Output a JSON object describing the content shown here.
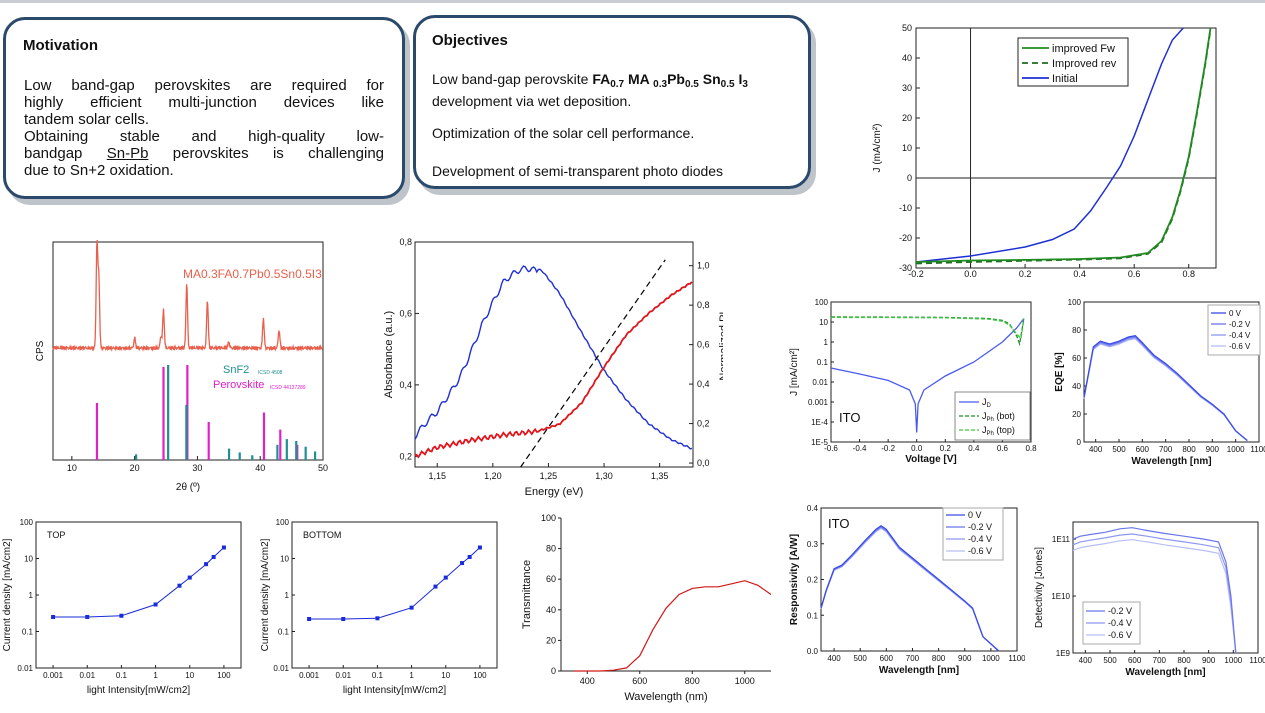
{
  "motivation": {
    "title": "Motivation",
    "line1": "Low band-gap perovskites are required for",
    "line2": "highly efficient multi-junction devices like",
    "line3": "tandem solar cells.",
    "line4": "Obtaining stable and high-quality low-",
    "line5a": "bandgap ",
    "line5b": "Sn-Pb",
    "line5c": " perovskites is challenging",
    "line6": "due to Sn+2 oxidation."
  },
  "objectives": {
    "title": "Objectives",
    "item1_pre": "Low band-gap perovskite ",
    "f_fa": "FA",
    "f_fa_sub": "0.7",
    "f_ma": " MA ",
    "f_ma_sub": "0.3",
    "f_pb": "Pb",
    "f_pb_sub": "0.5",
    "f_sn": " Sn",
    "f_sn_sub": "0.5",
    "f_i": " I",
    "f_i_sub": "3",
    "item1_post": "development via wet deposition.",
    "item2": "Optimization of the solar cell performance.",
    "item3": "Development of semi-transparent photo diodes"
  },
  "chart_data": [
    {
      "id": "jv",
      "type": "line",
      "ylabel": "J (mA/cm²)",
      "xlim": [
        -0.2,
        0.9
      ],
      "ylim": [
        -30,
        50
      ],
      "x_ticks": [
        "-0.2",
        "0.0",
        "0.2",
        "0.4",
        "0.6",
        "0.8"
      ],
      "y_ticks": [
        "-30",
        "-20",
        "-10",
        "0",
        "10",
        "20",
        "30",
        "40",
        "50"
      ],
      "legend": [
        "improved Fw",
        "Improved rev",
        "Initial"
      ],
      "colors": {
        "fw": "#1f8a1f",
        "rev": "#1f6b1f",
        "init": "#1f2fd6"
      },
      "series": [
        {
          "name": "improved Fw",
          "x": [
            -0.2,
            0.0,
            0.2,
            0.4,
            0.55,
            0.65,
            0.7,
            0.74,
            0.77,
            0.8,
            0.83,
            0.86,
            0.88
          ],
          "y": [
            -28,
            -27.5,
            -27.3,
            -27,
            -26.5,
            -25,
            -21,
            -13,
            -4,
            7,
            22,
            38,
            50
          ]
        },
        {
          "name": "Improved rev",
          "x": [
            -0.2,
            0.0,
            0.2,
            0.4,
            0.55,
            0.65,
            0.7,
            0.74,
            0.77,
            0.8,
            0.83,
            0.86,
            0.88
          ],
          "y": [
            -28.5,
            -28,
            -27.6,
            -27.2,
            -26.8,
            -25.3,
            -21.5,
            -13.5,
            -4.5,
            6.5,
            21.5,
            37.5,
            49.5
          ]
        },
        {
          "name": "Initial",
          "x": [
            -0.2,
            0.0,
            0.2,
            0.3,
            0.38,
            0.44,
            0.5,
            0.55,
            0.6,
            0.65,
            0.7,
            0.74,
            0.78
          ],
          "y": [
            -28,
            -26,
            -23,
            -20.5,
            -17,
            -11,
            -3,
            4,
            14,
            26,
            38,
            46,
            50
          ]
        }
      ]
    },
    {
      "id": "xrd",
      "type": "bar",
      "xlabel": "2θ (º)",
      "ylabel": "CPS",
      "xlim": [
        7,
        50
      ],
      "x_ticks": [
        "10",
        "20",
        "30",
        "40",
        "50"
      ],
      "label_main": "MA0.3FA0.7Pb0.5Sn0.5I3",
      "label_snf2": "SnF2",
      "label_snf2_ref": "ICSD 4508",
      "label_perov": "Perovskite",
      "label_perov_ref": "ICSD 44137289",
      "colors": {
        "xrd": "#e8604c",
        "snf2": "#1f8f8f",
        "perov": "#e020c8"
      },
      "peaks": [
        [
          14.0,
          105
        ],
        [
          14.3,
          70
        ],
        [
          20.0,
          10
        ],
        [
          24.6,
          38
        ],
        [
          28.3,
          65
        ],
        [
          31.6,
          48
        ],
        [
          40.5,
          30
        ],
        [
          43.0,
          18
        ],
        [
          24.2,
          12
        ],
        [
          35.0,
          6
        ]
      ],
      "snf2_lines": [
        [
          20.0,
          6
        ],
        [
          25.1,
          100
        ],
        [
          28.0,
          58
        ],
        [
          34.8,
          12
        ],
        [
          36.5,
          8
        ],
        [
          38.5,
          5
        ],
        [
          42.5,
          16
        ],
        [
          44.0,
          22
        ],
        [
          45.5,
          20
        ],
        [
          47.0,
          14
        ],
        [
          48.5,
          9
        ]
      ],
      "perov_lines": [
        [
          14.0,
          60
        ],
        [
          24.6,
          98
        ],
        [
          28.4,
          100
        ],
        [
          31.8,
          40
        ],
        [
          40.6,
          50
        ],
        [
          43.2,
          32
        ],
        [
          45.9,
          16
        ]
      ]
    },
    {
      "id": "absorb",
      "type": "line",
      "xlabel": "Energy (eV)",
      "ylabel": "Absorbance (a.u.)",
      "ylabel_right": "Normalized PL",
      "xlim": [
        1.13,
        1.38
      ],
      "ylim": [
        0.17,
        0.8
      ],
      "x_ticks": [
        "1,15",
        "1,20",
        "1,25",
        "1,30",
        "1,35"
      ],
      "y_ticks": [
        "0,2",
        "0,4",
        "0,6",
        "0,8"
      ],
      "y2_ticks": [
        "0,0",
        "0,2",
        "0,4",
        "0,6",
        "0,8",
        "1,0"
      ],
      "colors": {
        "pl": "#1f2fd6",
        "abs": "#e0141a",
        "fit": "#000000"
      },
      "pl": {
        "x": [
          1.13,
          1.15,
          1.17,
          1.19,
          1.21,
          1.225,
          1.235,
          1.245,
          1.26,
          1.28,
          1.3,
          1.32,
          1.34,
          1.36,
          1.38
        ],
        "y": [
          0.12,
          0.25,
          0.45,
          0.7,
          0.9,
          0.98,
          1.0,
          0.97,
          0.86,
          0.66,
          0.47,
          0.32,
          0.2,
          0.12,
          0.07
        ]
      },
      "abs": {
        "x": [
          1.13,
          1.15,
          1.18,
          1.21,
          1.24,
          1.26,
          1.28,
          1.3,
          1.32,
          1.34,
          1.36,
          1.38
        ],
        "y": [
          0.2,
          0.225,
          0.245,
          0.26,
          0.27,
          0.29,
          0.35,
          0.45,
          0.54,
          0.6,
          0.65,
          0.69
        ]
      },
      "fit": {
        "x": [
          1.225,
          1.355
        ],
        "y": [
          0.17,
          0.75
        ]
      }
    },
    {
      "id": "jv_log",
      "type": "line",
      "xlabel": "Voltage [V]",
      "ylabel": "J [mA/cm²]",
      "annotation": "ITO",
      "xlim": [
        -0.6,
        0.8
      ],
      "ylim_log": [
        -5,
        2
      ],
      "x_ticks": [
        "-0.6",
        "-0.4",
        "-0.2",
        "0.0",
        "0.2",
        "0.4",
        "0.6",
        "0.8"
      ],
      "y_ticks": [
        "1E-5",
        "1E-4",
        "0.001",
        "0.01",
        "0.1",
        "1",
        "10",
        "100"
      ],
      "legend": [
        "JD",
        "JPh (bot)",
        "JPh (top)"
      ],
      "legend_sub": [
        "D",
        "Ph",
        "Ph"
      ],
      "legend_main": [
        "J",
        "J",
        "J"
      ],
      "legend_suffix": [
        "",
        " (bot)",
        " (top)"
      ],
      "colors": {
        "d": "#4a5af0",
        "bot": "#1f8f2f",
        "top": "#3ec83e"
      },
      "jd": {
        "x": [
          -0.6,
          -0.4,
          -0.2,
          -0.05,
          -0.01,
          0.0,
          0.01,
          0.05,
          0.2,
          0.4,
          0.6,
          0.7,
          0.75
        ],
        "y": [
          0.05,
          0.025,
          0.012,
          0.004,
          0.0008,
          3e-05,
          0.0008,
          0.004,
          0.02,
          0.1,
          1,
          5,
          15
        ]
      },
      "jph_bot": {
        "x": [
          -0.6,
          -0.2,
          0.2,
          0.5,
          0.6,
          0.65,
          0.7,
          0.72,
          0.75
        ],
        "y": [
          18,
          17.5,
          17,
          15,
          12,
          8,
          2,
          0.8,
          15
        ]
      },
      "jph_top": {
        "x": [
          -0.6,
          -0.2,
          0.2,
          0.5,
          0.6,
          0.65,
          0.7,
          0.73,
          0.75
        ],
        "y": [
          17,
          16.8,
          16.2,
          14,
          11,
          7,
          2.5,
          1.5,
          15
        ]
      }
    },
    {
      "id": "eqe",
      "type": "line",
      "xlabel": "Wavelength [nm]",
      "ylabel": "EQE [%]",
      "xlim": [
        350,
        1100
      ],
      "ylim": [
        0,
        100
      ],
      "x_ticks": [
        "400",
        "500",
        "600",
        "700",
        "800",
        "900",
        "1000",
        "1100"
      ],
      "y_ticks": [
        "0",
        "20",
        "40",
        "60",
        "80",
        "100"
      ],
      "legend": [
        "0 V",
        "-0.2 V",
        "-0.4 V",
        "-0.6 V"
      ],
      "colors": {
        "c0": "#3a4ae8",
        "c1": "#6a76ec",
        "c2": "#8f98f0",
        "c3": "#b8bef5"
      },
      "x": [
        350,
        370,
        390,
        420,
        460,
        500,
        540,
        570,
        600,
        650,
        700,
        750,
        800,
        850,
        900,
        950,
        1000,
        1050
      ],
      "y": [
        32,
        50,
        68,
        72,
        70,
        72,
        75,
        76,
        71,
        62,
        56,
        49,
        41,
        33,
        27,
        20,
        8,
        1
      ]
    },
    {
      "id": "top_int",
      "type": "line",
      "label": "TOP",
      "xlabel": "light Intensity[mW/cm2]",
      "ylabel": "Current density [mA/cm2]",
      "x_ticks": [
        "0.001",
        "0.01",
        "0.1",
        "1",
        "10",
        "100"
      ],
      "y_ticks": [
        "0.01",
        "0.1",
        "1",
        "10",
        "100"
      ],
      "color": "#1a2bd8",
      "x": [
        0.001,
        0.01,
        0.1,
        1,
        5,
        10,
        30,
        50,
        100
      ],
      "y": [
        0.25,
        0.25,
        0.27,
        0.55,
        1.8,
        3.0,
        7.0,
        11,
        20
      ]
    },
    {
      "id": "bottom_int",
      "type": "line",
      "label": "BOTTOM",
      "xlabel": "light Intensity[mW/cm2]",
      "ylabel": "Current density [mA/cm2]",
      "x_ticks": [
        "0.001",
        "0.01",
        "0.1",
        "1",
        "10",
        "100"
      ],
      "y_ticks": [
        "0.01",
        "0.1",
        "1",
        "10",
        "100"
      ],
      "color": "#1a2bd8",
      "x": [
        0.001,
        0.01,
        0.1,
        1,
        5,
        10,
        30,
        50,
        100
      ],
      "y": [
        0.22,
        0.22,
        0.23,
        0.45,
        1.7,
        3.0,
        7.5,
        11,
        20
      ]
    },
    {
      "id": "trans",
      "type": "line",
      "xlabel": "Wavelength (nm)",
      "ylabel": "Transmittance",
      "xlim": [
        300,
        1100
      ],
      "ylim": [
        0,
        100
      ],
      "x_ticks": [
        "400",
        "600",
        "800",
        "1000"
      ],
      "y_ticks": [
        "0",
        "20",
        "40",
        "60",
        "80",
        "100"
      ],
      "color": "#d01818",
      "x": [
        350,
        400,
        450,
        500,
        550,
        600,
        650,
        700,
        750,
        800,
        850,
        900,
        950,
        1000,
        1050,
        1100
      ],
      "y": [
        0,
        0,
        0,
        0.5,
        2,
        10,
        27,
        41,
        50,
        54,
        55,
        55,
        57,
        59,
        56,
        50
      ]
    },
    {
      "id": "resp",
      "type": "line",
      "xlabel": "Wavelength [nm]",
      "ylabel": "Responsivity [A/W]",
      "annotation": "ITO",
      "xlim": [
        350,
        1100
      ],
      "ylim": [
        0,
        0.4
      ],
      "x_ticks": [
        "400",
        "500",
        "600",
        "700",
        "800",
        "900",
        "1000",
        "1100"
      ],
      "y_ticks": [
        "0.0",
        "0.1",
        "0.2",
        "0.3",
        "0.4"
      ],
      "legend": [
        "0 V",
        "-0.2 V",
        "-0.4 V",
        "-0.6 V"
      ],
      "colors": {
        "c0": "#3a4ae8",
        "c1": "#6a76ec",
        "c2": "#8f98f0",
        "c3": "#b8bef5"
      },
      "x": [
        350,
        370,
        400,
        430,
        470,
        520,
        560,
        580,
        600,
        650,
        700,
        750,
        800,
        850,
        900,
        930,
        970,
        1000,
        1030
      ],
      "y": [
        0.12,
        0.17,
        0.23,
        0.24,
        0.27,
        0.31,
        0.34,
        0.35,
        0.34,
        0.29,
        0.26,
        0.23,
        0.2,
        0.17,
        0.14,
        0.12,
        0.04,
        0.02,
        0.0
      ]
    },
    {
      "id": "detect",
      "type": "line",
      "xlabel": "Wavelength [nm]",
      "ylabel": "Detectivity [Jones]",
      "xlim": [
        350,
        1100
      ],
      "ylim_log": [
        9,
        11.3
      ],
      "x_ticks": [
        "400",
        "500",
        "600",
        "700",
        "800",
        "900",
        "1000",
        "1100"
      ],
      "y_ticks": [
        "1E9",
        "1E10",
        "1E11"
      ],
      "legend": [
        "-0.2 V",
        "-0.4 V",
        "-0.6 V"
      ],
      "colors": {
        "c1": "#6a76ec",
        "c2": "#8f98f0",
        "c3": "#b8bef5"
      },
      "x": [
        350,
        380,
        420,
        480,
        540,
        590,
        650,
        720,
        800,
        880,
        940,
        970,
        990,
        1010
      ],
      "y1": [
        11.0,
        11.05,
        11.08,
        11.12,
        11.18,
        11.2,
        11.15,
        11.1,
        11.05,
        11.0,
        10.95,
        10.6,
        10.0,
        9.0
      ],
      "y2": [
        10.9,
        10.95,
        10.98,
        11.02,
        11.07,
        11.09,
        11.05,
        11.0,
        10.95,
        10.9,
        10.85,
        10.5,
        9.9,
        9.0
      ],
      "y3": [
        10.8,
        10.85,
        10.88,
        10.92,
        10.97,
        10.99,
        10.95,
        10.9,
        10.85,
        10.8,
        10.75,
        10.4,
        9.8,
        9.0
      ]
    }
  ]
}
